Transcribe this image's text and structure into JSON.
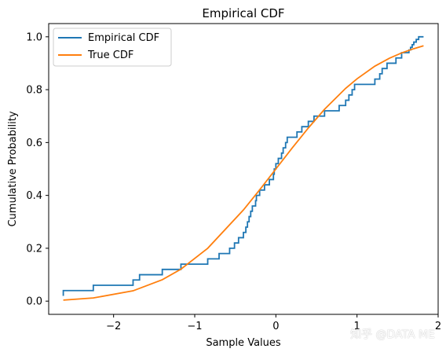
{
  "chart_data": {
    "type": "line",
    "title": "Empirical CDF",
    "xlabel": "Sample Values",
    "ylabel": "Cumulative Probability",
    "xlim": [
      -2.8,
      2.0
    ],
    "ylim": [
      -0.05,
      1.05
    ],
    "x_ticks": [
      -2,
      -1,
      0,
      1,
      2
    ],
    "x_tick_labels": [
      "−2",
      "−1",
      "0",
      "1",
      "2"
    ],
    "y_ticks": [
      0.0,
      0.2,
      0.4,
      0.6,
      0.8,
      1.0
    ],
    "y_tick_labels": [
      "0.0",
      "0.2",
      "0.4",
      "0.6",
      "0.8",
      "1.0"
    ],
    "grid": false,
    "legend": {
      "placement": "top-left"
    },
    "series": [
      {
        "name": "Empirical CDF",
        "kind": "step",
        "color": "#1f77b4",
        "x": [
          -2.62,
          -2.25,
          -1.76,
          -1.68,
          -1.4,
          -1.17,
          -0.84,
          -0.7,
          -0.57,
          -0.51,
          -0.46,
          -0.4,
          -0.37,
          -0.35,
          -0.33,
          -0.31,
          -0.29,
          -0.25,
          -0.24,
          -0.2,
          -0.14,
          -0.08,
          -0.03,
          -0.02,
          0.0,
          0.03,
          0.07,
          0.09,
          0.12,
          0.14,
          0.26,
          0.32,
          0.4,
          0.47,
          0.6,
          0.78,
          0.86,
          0.9,
          0.94,
          0.97,
          1.22,
          1.28,
          1.31,
          1.37,
          1.48,
          1.55,
          1.6,
          1.64,
          1.66,
          1.68,
          1.7,
          1.71,
          1.73,
          1.76,
          1.82
        ],
        "y": [
          0.04,
          0.06,
          0.08,
          0.1,
          0.12,
          0.14,
          0.16,
          0.18,
          0.2,
          0.22,
          0.24,
          0.26,
          0.28,
          0.3,
          0.32,
          0.34,
          0.36,
          0.38,
          0.4,
          0.42,
          0.44,
          0.46,
          0.48,
          0.5,
          0.52,
          0.54,
          0.56,
          0.58,
          0.6,
          0.62,
          0.64,
          0.66,
          0.68,
          0.7,
          0.72,
          0.74,
          0.76,
          0.78,
          0.8,
          0.82,
          0.84,
          0.86,
          0.88,
          0.9,
          0.92,
          0.94,
          0.94,
          0.95,
          0.96,
          0.97,
          0.98,
          0.98,
          0.99,
          1.0,
          1.0
        ]
      },
      {
        "name": "True CDF",
        "kind": "line",
        "color": "#ff7f0e",
        "x": [
          -2.62,
          -2.25,
          -1.76,
          -1.4,
          -1.17,
          -0.84,
          -0.4,
          -0.2,
          0.0,
          0.2,
          0.4,
          0.6,
          0.86,
          1.0,
          1.22,
          1.4,
          1.55,
          1.7,
          1.82
        ],
        "y": [
          0.004,
          0.012,
          0.039,
          0.081,
          0.121,
          0.2,
          0.345,
          0.421,
          0.5,
          0.579,
          0.655,
          0.726,
          0.805,
          0.841,
          0.889,
          0.919,
          0.939,
          0.955,
          0.966
        ]
      }
    ]
  },
  "watermark": "知乎 @DATA ME"
}
